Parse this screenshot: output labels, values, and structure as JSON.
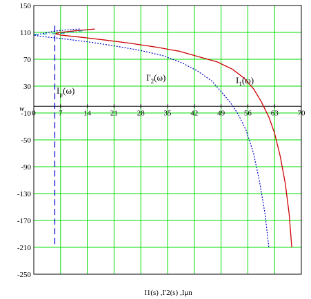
{
  "chart_data": {
    "type": "line",
    "title": "",
    "xlabel": "I1(s) ,I'2(s) ,Iμn",
    "ylabel": "w",
    "xlim": [
      0,
      70
    ],
    "ylim": [
      -250,
      150
    ],
    "x_ticks": [
      "0",
      "7",
      "14",
      "21",
      "28",
      "35",
      "42",
      "49",
      "56",
      "63",
      "70"
    ],
    "y_ticks": [
      "150",
      "110",
      "70",
      "30",
      "-10",
      "-50",
      "-90",
      "-130",
      "-170",
      "-210",
      "-250"
    ],
    "grid": true,
    "grid_color": "#00dd00",
    "series": [
      {
        "name": "I1(ω)",
        "label_base": "I",
        "label_sub": "1",
        "label_arg": "(ω)",
        "color": "#cc0000",
        "dash": "solid",
        "points": [
          [
            16,
            115
          ],
          [
            11,
            112.5
          ],
          [
            7,
            110
          ],
          [
            5.5,
            108
          ],
          [
            7,
            106
          ],
          [
            12,
            103
          ],
          [
            18,
            99
          ],
          [
            25,
            94
          ],
          [
            32,
            88
          ],
          [
            38,
            82
          ],
          [
            43,
            74
          ],
          [
            48,
            66
          ],
          [
            52,
            55
          ],
          [
            55,
            42
          ],
          [
            57.5,
            26
          ],
          [
            59.5,
            7
          ],
          [
            61.5,
            -16
          ],
          [
            63,
            -40
          ],
          [
            64.5,
            -75
          ],
          [
            65.8,
            -115
          ],
          [
            66.8,
            -160
          ],
          [
            67.5,
            -210
          ]
        ]
      },
      {
        "name": "I'2(ω)",
        "label_base": "I'",
        "label_sub": "2",
        "label_arg": "(ω)",
        "color": "#0000cc",
        "dash": "dotted",
        "points": [
          [
            12,
            115
          ],
          [
            8,
            113.5
          ],
          [
            5.5,
            112
          ],
          [
            3,
            109
          ],
          [
            0,
            106
          ],
          [
            2,
            104
          ],
          [
            7,
            101
          ],
          [
            14,
            96
          ],
          [
            21,
            90
          ],
          [
            28,
            83
          ],
          [
            34,
            75
          ],
          [
            39,
            64
          ],
          [
            43,
            52
          ],
          [
            46.5,
            38
          ],
          [
            49,
            22
          ],
          [
            51.5,
            5
          ],
          [
            53.5,
            -12
          ],
          [
            55.5,
            -35
          ],
          [
            57.5,
            -70
          ],
          [
            59,
            -110
          ],
          [
            60.5,
            -160
          ],
          [
            61.5,
            -210
          ]
        ]
      },
      {
        "name": "Iμ(ω)",
        "label_base": "I",
        "label_sub": "μ",
        "label_arg": "(ω)",
        "color": "#0000cc",
        "dash": "dashed",
        "points": [
          [
            5.5,
            120
          ],
          [
            5.5,
            -210
          ]
        ]
      },
      {
        "name": "",
        "color": "#00aaaa",
        "dash": "dashdot",
        "points": [
          [
            0,
            107
          ],
          [
            3,
            107.5
          ],
          [
            5.5,
            108
          ],
          [
            8,
            109
          ],
          [
            11,
            111
          ],
          [
            14,
            113.5
          ]
        ]
      }
    ]
  }
}
